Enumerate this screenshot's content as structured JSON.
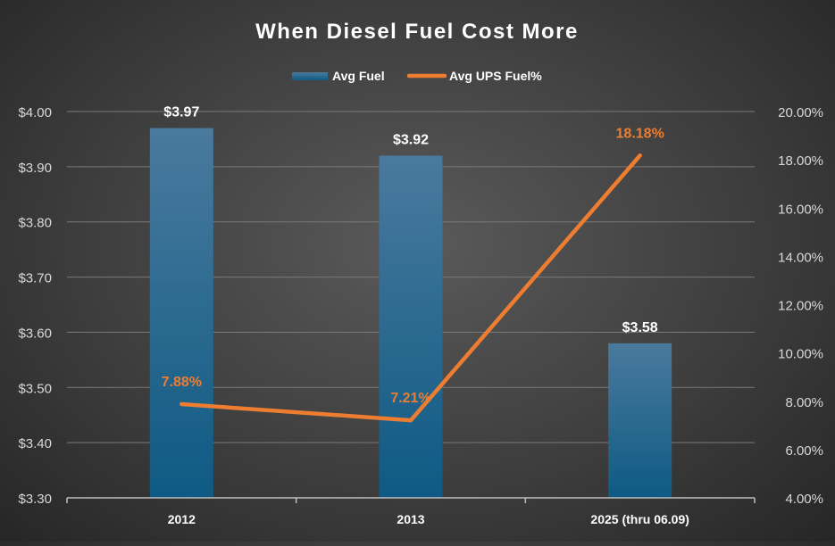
{
  "chart_data": {
    "type": "bar+line",
    "title": "When Diesel Fuel Cost More",
    "categories": [
      "2012",
      "2013",
      "2025 (thru 06.09)"
    ],
    "series": [
      {
        "name": "Avg Fuel",
        "kind": "bar",
        "axis": "left",
        "values": [
          3.97,
          3.92,
          3.58
        ],
        "labels": [
          "$3.97",
          "$3.92",
          "$3.58"
        ],
        "color": "#1f5f86"
      },
      {
        "name": "Avg UPS Fuel%",
        "kind": "line",
        "axis": "right",
        "values": [
          7.88,
          7.21,
          18.18
        ],
        "labels": [
          "7.88%",
          "7.21%",
          "18.18%"
        ],
        "color": "#ed7d31"
      }
    ],
    "y_left": {
      "ylim": [
        3.3,
        4.0
      ],
      "ticks": [
        3.3,
        3.4,
        3.5,
        3.6,
        3.7,
        3.8,
        3.9,
        4.0
      ],
      "tick_labels": [
        "$3.30",
        "$3.40",
        "$3.50",
        "$3.60",
        "$3.70",
        "$3.80",
        "$3.90",
        "$4.00"
      ]
    },
    "y_right": {
      "ylim": [
        4,
        20
      ],
      "ticks": [
        4,
        6,
        8,
        10,
        12,
        14,
        16,
        18,
        20
      ],
      "tick_labels": [
        "4.00%",
        "6.00%",
        "8.00%",
        "10.00%",
        "12.00%",
        "14.00%",
        "16.00%",
        "18.00%",
        "20.00%"
      ]
    },
    "grid": true,
    "legend_position": "top"
  }
}
